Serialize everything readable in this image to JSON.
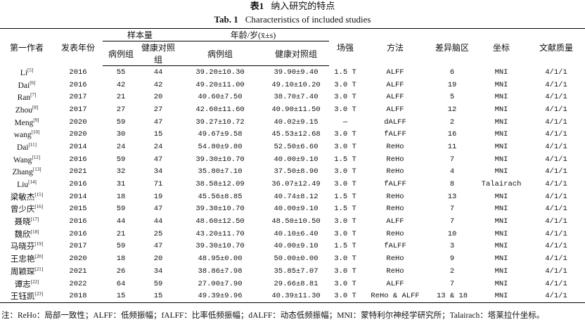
{
  "title": {
    "cn_label": "表1",
    "cn_text": "纳入研究的特点",
    "en_label": "Tab. 1",
    "en_text": "Characteristics of included studies"
  },
  "table": {
    "header": {
      "author": "第一作者",
      "year": "发表年份",
      "sample": "样本量",
      "sample_cases": "病例组",
      "sample_controls": "健康对照组",
      "age": "年龄/岁(x̄±s)",
      "age_cases": "病例组",
      "age_controls": "健康对照组",
      "field": "场强",
      "method": "方法",
      "regions": "差异脑区",
      "coords": "坐标",
      "quality": "文献质量"
    },
    "rows": [
      [
        "Li",
        "[5]",
        "2016",
        "55",
        "44",
        "39.20±10.30",
        "39.90±9.40",
        "1.5 T",
        "ALFF",
        "6",
        "MNI",
        "4/1/1"
      ],
      [
        "Dai",
        "[6]",
        "2016",
        "42",
        "42",
        "49.20±11.00",
        "49.10±10.20",
        "3.0 T",
        "ALFF",
        "19",
        "MNI",
        "4/1/1"
      ],
      [
        "Ran",
        "[7]",
        "2017",
        "21",
        "20",
        "40.60±7.50",
        "38.70±7.40",
        "3.0 T",
        "ALFF",
        "5",
        "MNI",
        "4/1/1"
      ],
      [
        "Zhou",
        "[8]",
        "2017",
        "27",
        "27",
        "42.60±11.60",
        "40.90±11.50",
        "3.0 T",
        "ALFF",
        "12",
        "MNI",
        "4/1/1"
      ],
      [
        "Meng",
        "[9]",
        "2020",
        "59",
        "47",
        "39.27±10.72",
        "40.02±9.15",
        "—",
        "dALFF",
        "2",
        "MNI",
        "4/1/1"
      ],
      [
        "wang",
        "[10]",
        "2020",
        "30",
        "15",
        "49.67±9.58",
        "45.53±12.68",
        "3.0 T",
        "fALFF",
        "16",
        "MNI",
        "4/1/1"
      ],
      [
        "Dai",
        "[11]",
        "2014",
        "24",
        "24",
        "54.80±9.80",
        "52.50±6.60",
        "3.0 T",
        "ReHo",
        "11",
        "MNI",
        "4/1/1"
      ],
      [
        "Wang",
        "[12]",
        "2016",
        "59",
        "47",
        "39.30±10.70",
        "40.00±9.10",
        "1.5 T",
        "ReHo",
        "7",
        "MNI",
        "4/1/1"
      ],
      [
        "Zhang",
        "[13]",
        "2021",
        "32",
        "34",
        "35.80±7.10",
        "37.50±8.90",
        "3.0 T",
        "ReHo",
        "4",
        "MNI",
        "4/1/1"
      ],
      [
        "Liu",
        "[14]",
        "2016",
        "31",
        "71",
        "38.58±12.09",
        "36.07±12.49",
        "3.0 T",
        "fALFF",
        "8",
        "Talairach",
        "4/1/1"
      ],
      [
        "梁敏杰",
        "[15]",
        "2014",
        "18",
        "19",
        "45.56±8.85",
        "40.74±8.12",
        "1.5 T",
        "ReHo",
        "13",
        "MNI",
        "4/1/1"
      ],
      [
        "曾少庆",
        "[16]",
        "2015",
        "59",
        "47",
        "39.30±10.70",
        "40.00±9.10",
        "1.5 T",
        "ReHo",
        "7",
        "MNI",
        "4/1/1"
      ],
      [
        "聂晓",
        "[17]",
        "2016",
        "44",
        "44",
        "48.60±12.50",
        "48.50±10.50",
        "3.0 T",
        "ALFF",
        "7",
        "MNI",
        "4/1/1"
      ],
      [
        "魏欣",
        "[18]",
        "2016",
        "21",
        "25",
        "43.20±11.70",
        "40.10±6.40",
        "3.0 T",
        "ReHo",
        "10",
        "MNI",
        "4/1/1"
      ],
      [
        "马晓芬",
        "[19]",
        "2017",
        "59",
        "47",
        "39.30±10.70",
        "40.00±9.10",
        "1.5 T",
        "fALFF",
        "3",
        "MNI",
        "4/1/1"
      ],
      [
        "王忠艳",
        "[20]",
        "2020",
        "18",
        "20",
        "48.95±0.00",
        "50.00±0.00",
        "3.0 T",
        "ReHo",
        "9",
        "MNI",
        "4/1/1"
      ],
      [
        "周颖琛",
        "[21]",
        "2021",
        "26",
        "34",
        "38.86±7.98",
        "35.85±7.07",
        "3.0 T",
        "ReHo",
        "2",
        "MNI",
        "4/1/1"
      ],
      [
        "谭志",
        "[22]",
        "2022",
        "64",
        "59",
        "27.00±7.90",
        "29.66±8.81",
        "3.0 T",
        "ALFF",
        "7",
        "MNI",
        "4/1/1"
      ],
      [
        "王钰凯",
        "[23]",
        "2018",
        "15",
        "15",
        "49.39±9.96",
        "40.39±11.30",
        "3.0 T",
        "ReHo & ALFF",
        "13 & 18",
        "MNI",
        "4/1/1"
      ]
    ]
  },
  "note": "注：ReHo：局部一致性；ALFF：低频振幅；fALFF：比率低频振幅；dALFF：动态低频振幅；MNI：蒙特利尔神经学研究所；Talairach：塔莱拉什坐标。"
}
